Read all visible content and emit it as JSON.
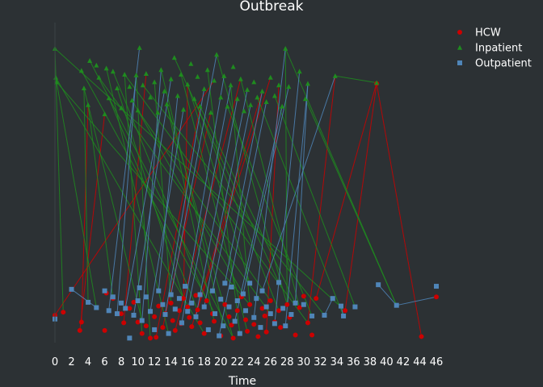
{
  "chart_data": {
    "type": "scatter",
    "title": "Outbreak",
    "xlabel": "Time",
    "ylabel": "",
    "xlim": [
      0,
      46
    ],
    "x_ticks": [
      0,
      2,
      4,
      6,
      8,
      10,
      12,
      14,
      16,
      18,
      20,
      22,
      24,
      26,
      28,
      30,
      32,
      34,
      36,
      38,
      40,
      42,
      44,
      46
    ],
    "y_axis_visible": false,
    "grid": false,
    "legend_position": "top-right",
    "background": "#2c3134",
    "series": [
      {
        "name": "HCW",
        "marker": "circle",
        "color": "#cc0000",
        "points": [
          [
            0,
            0.36
          ],
          [
            1,
            0.4
          ],
          [
            3,
            0.16
          ],
          [
            3.2,
            0.27
          ],
          [
            6,
            0.16
          ],
          [
            6.2,
            0.65
          ],
          [
            7,
            0.58
          ],
          [
            8,
            0.38
          ],
          [
            8.3,
            0.26
          ],
          [
            9,
            0.45
          ],
          [
            9.5,
            0.53
          ],
          [
            10,
            0.27
          ],
          [
            10.5,
            0.12
          ],
          [
            11,
            0.22
          ],
          [
            11.5,
            0.06
          ],
          [
            12,
            0.34
          ],
          [
            12.2,
            0.07
          ],
          [
            12.5,
            0.48
          ],
          [
            13,
            0.2
          ],
          [
            13.3,
            0.38
          ],
          [
            14,
            0.52
          ],
          [
            14.2,
            0.29
          ],
          [
            14.5,
            0.16
          ],
          [
            15,
            0.42
          ],
          [
            15.2,
            0.25
          ],
          [
            15.5,
            0.58
          ],
          [
            16,
            0.47
          ],
          [
            16.2,
            0.33
          ],
          [
            16.5,
            0.21
          ],
          [
            17,
            0.62
          ],
          [
            17.2,
            0.43
          ],
          [
            17.5,
            0.26
          ],
          [
            18,
            0.12
          ],
          [
            18.3,
            0.55
          ],
          [
            19,
            0.38
          ],
          [
            19.2,
            0.28
          ],
          [
            20,
            0.09
          ],
          [
            20.5,
            0.5
          ],
          [
            21,
            0.34
          ],
          [
            21.3,
            0.23
          ],
          [
            21.5,
            0.06
          ],
          [
            22,
            0.42
          ],
          [
            22.5,
            0.6
          ],
          [
            23,
            0.3
          ],
          [
            23.2,
            0.15
          ],
          [
            23.5,
            0.5
          ],
          [
            24,
            0.24
          ],
          [
            24.5,
            0.08
          ],
          [
            25,
            0.45
          ],
          [
            25.3,
            0.35
          ],
          [
            25.5,
            0.14
          ],
          [
            26,
            0.55
          ],
          [
            26.5,
            0.27
          ],
          [
            27,
            0.42
          ],
          [
            27.2,
            0.2
          ],
          [
            28,
            0.5
          ],
          [
            28.3,
            0.33
          ],
          [
            29,
            0.1
          ],
          [
            29.5,
            0.46
          ],
          [
            30,
            0.61
          ],
          [
            30.5,
            0.26
          ],
          [
            31,
            0.1
          ],
          [
            31.5,
            0.58
          ],
          [
            35,
            0.42
          ],
          [
            38.8,
            3.4
          ],
          [
            44.2,
            0.08
          ],
          [
            46,
            0.6
          ]
        ]
      },
      {
        "name": "Inpatient",
        "marker": "triangle",
        "color": "#1f8c1f",
        "points": [
          [
            0,
            3.86
          ],
          [
            0.1,
            3.48
          ],
          [
            0.2,
            3.42
          ],
          [
            3.2,
            3.57
          ],
          [
            3.5,
            3.34
          ],
          [
            4,
            3.12
          ],
          [
            4.2,
            3.7
          ],
          [
            5,
            3.64
          ],
          [
            5.3,
            3.48
          ],
          [
            6,
            3.0
          ],
          [
            6.2,
            3.6
          ],
          [
            6.5,
            3.21
          ],
          [
            7,
            3.56
          ],
          [
            7.5,
            3.34
          ],
          [
            8,
            3.08
          ],
          [
            8.4,
            3.52
          ],
          [
            9,
            3.36
          ],
          [
            9.3,
            3.18
          ],
          [
            9.8,
            3.51
          ],
          [
            10,
            3.05
          ],
          [
            10.2,
            3.87
          ],
          [
            10.6,
            3.38
          ],
          [
            11,
            3.53
          ],
          [
            11.5,
            3.22
          ],
          [
            12,
            3.42
          ],
          [
            12.4,
            3.02
          ],
          [
            12.8,
            3.58
          ],
          [
            13.2,
            3.3
          ],
          [
            13.5,
            3.13
          ],
          [
            14,
            3.46
          ],
          [
            14.4,
            3.74
          ],
          [
            14.8,
            3.24
          ],
          [
            15.2,
            3.52
          ],
          [
            15.5,
            3.06
          ],
          [
            16,
            3.39
          ],
          [
            16.4,
            3.66
          ],
          [
            16.8,
            3.2
          ],
          [
            17.2,
            3.49
          ],
          [
            17.5,
            3.1
          ],
          [
            18,
            3.33
          ],
          [
            18.4,
            3.58
          ],
          [
            18.8,
            3.02
          ],
          [
            19.2,
            3.44
          ],
          [
            19.5,
            3.78
          ],
          [
            20,
            3.22
          ],
          [
            20.4,
            3.5
          ],
          [
            20.8,
            3.1
          ],
          [
            21.2,
            3.38
          ],
          [
            21.5,
            3.62
          ],
          [
            22,
            3.2
          ],
          [
            22.4,
            3.46
          ],
          [
            22.8,
            3.04
          ],
          [
            23.2,
            3.32
          ],
          [
            23.6,
            3.12
          ],
          [
            24,
            3.42
          ],
          [
            24.4,
            3.22
          ],
          [
            25,
            3.3
          ],
          [
            25.5,
            3.16
          ],
          [
            26,
            3.48
          ],
          [
            26.5,
            3.24
          ],
          [
            27,
            3.38
          ],
          [
            27.4,
            3.1
          ],
          [
            27.8,
            3.86
          ],
          [
            28.2,
            3.36
          ],
          [
            29.5,
            3.56
          ],
          [
            30.2,
            3.2
          ],
          [
            30.5,
            3.4
          ],
          [
            33.8,
            3.5
          ],
          [
            38.8,
            3.41
          ]
        ]
      },
      {
        "name": "Outpatient",
        "marker": "square",
        "color": "#4f85b8",
        "points": [
          [
            0,
            0.31
          ],
          [
            2,
            0.7
          ],
          [
            4,
            0.53
          ],
          [
            5,
            0.46
          ],
          [
            6,
            0.68
          ],
          [
            6.5,
            0.42
          ],
          [
            7,
            0.6
          ],
          [
            7.5,
            0.38
          ],
          [
            8,
            0.52
          ],
          [
            8.5,
            0.45
          ],
          [
            9,
            0.06
          ],
          [
            9.5,
            0.36
          ],
          [
            10,
            0.55
          ],
          [
            10.2,
            0.72
          ],
          [
            10.5,
            0.29
          ],
          [
            11,
            0.6
          ],
          [
            11.5,
            0.41
          ],
          [
            12,
            0.17
          ],
          [
            12.5,
            0.68
          ],
          [
            13,
            0.5
          ],
          [
            13.3,
            0.37
          ],
          [
            13.7,
            0.12
          ],
          [
            14,
            0.63
          ],
          [
            14.5,
            0.44
          ],
          [
            15,
            0.58
          ],
          [
            15.3,
            0.26
          ],
          [
            15.7,
            0.74
          ],
          [
            16,
            0.41
          ],
          [
            16.5,
            0.52
          ],
          [
            17,
            0.34
          ],
          [
            17.5,
            0.63
          ],
          [
            18,
            0.47
          ],
          [
            18.5,
            0.17
          ],
          [
            19,
            0.68
          ],
          [
            19.3,
            0.38
          ],
          [
            19.8,
            0.09
          ],
          [
            20,
            0.57
          ],
          [
            20.3,
            0.22
          ],
          [
            20.5,
            0.78
          ],
          [
            21,
            0.47
          ],
          [
            21.3,
            0.73
          ],
          [
            21.7,
            0.28
          ],
          [
            22,
            0.55
          ],
          [
            22.3,
            0.12
          ],
          [
            22.7,
            0.64
          ],
          [
            23,
            0.42
          ],
          [
            23.5,
            0.78
          ],
          [
            24,
            0.33
          ],
          [
            24.3,
            0.58
          ],
          [
            24.8,
            0.2
          ],
          [
            25,
            0.68
          ],
          [
            25.5,
            0.47
          ],
          [
            26,
            0.38
          ],
          [
            26.5,
            0.25
          ],
          [
            27,
            0.79
          ],
          [
            27.5,
            0.45
          ],
          [
            27.8,
            0.22
          ],
          [
            28.5,
            0.37
          ],
          [
            29,
            0.52
          ],
          [
            30,
            0.5
          ],
          [
            31,
            0.35
          ],
          [
            32.5,
            0.36
          ],
          [
            33.5,
            0.58
          ],
          [
            34.5,
            0.48
          ],
          [
            34.8,
            0.35
          ],
          [
            36.2,
            0.47
          ],
          [
            39,
            0.76
          ],
          [
            41.2,
            0.49
          ],
          [
            46,
            0.74
          ]
        ]
      }
    ],
    "links": [
      [
        0,
        0,
        1,
        42
      ],
      [
        0,
        1,
        1,
        0
      ],
      [
        0,
        2,
        1,
        9
      ],
      [
        0,
        3,
        1,
        5
      ],
      [
        0,
        6,
        1,
        5
      ],
      [
        0,
        8,
        1,
        22
      ],
      [
        0,
        12,
        1,
        15
      ],
      [
        0,
        14,
        1,
        18
      ],
      [
        0,
        16,
        1,
        38
      ],
      [
        0,
        18,
        1,
        41
      ],
      [
        0,
        22,
        1,
        50
      ],
      [
        0,
        25,
        1,
        34
      ],
      [
        0,
        28,
        1,
        56
      ],
      [
        0,
        30,
        1,
        58
      ],
      [
        0,
        33,
        1,
        12
      ],
      [
        0,
        40,
        1,
        28
      ],
      [
        0,
        45,
        1,
        47
      ],
      [
        0,
        50,
        1,
        60
      ],
      [
        0,
        55,
        1,
        62
      ],
      [
        0,
        60,
        1,
        67
      ],
      [
        0,
        62,
        1,
        68
      ],
      [
        0,
        64,
        0,
        63
      ],
      [
        0,
        65,
        0,
        64
      ],
      [
        1,
        0,
        0,
        63
      ],
      [
        1,
        1,
        0,
        32
      ],
      [
        1,
        2,
        0,
        45
      ],
      [
        1,
        3,
        2,
        34
      ],
      [
        1,
        4,
        2,
        14
      ],
      [
        1,
        6,
        0,
        40
      ],
      [
        1,
        8,
        2,
        52
      ],
      [
        1,
        10,
        2,
        21
      ],
      [
        1,
        11,
        0,
        30
      ],
      [
        1,
        13,
        2,
        27
      ],
      [
        1,
        15,
        0,
        60
      ],
      [
        1,
        17,
        2,
        44
      ],
      [
        1,
        19,
        0,
        51
      ],
      [
        1,
        21,
        2,
        61
      ],
      [
        1,
        24,
        0,
        20
      ],
      [
        1,
        26,
        2,
        37
      ],
      [
        1,
        28,
        0,
        35
      ],
      [
        1,
        30,
        2,
        54
      ],
      [
        1,
        32,
        0,
        44
      ],
      [
        1,
        34,
        2,
        46
      ],
      [
        1,
        36,
        0,
        53
      ],
      [
        1,
        38,
        2,
        58
      ],
      [
        1,
        40,
        2,
        43
      ],
      [
        1,
        43,
        0,
        55
      ],
      [
        1,
        46,
        2,
        60
      ],
      [
        1,
        50,
        0,
        58
      ],
      [
        1,
        55,
        2,
        64
      ],
      [
        1,
        59,
        2,
        65
      ],
      [
        1,
        62,
        2,
        67
      ],
      [
        1,
        65,
        2,
        67
      ],
      [
        1,
        67,
        1,
        68
      ],
      [
        2,
        0,
        0,
        0
      ],
      [
        2,
        1,
        2,
        3
      ],
      [
        2,
        2,
        1,
        4
      ],
      [
        2,
        3,
        1,
        1
      ],
      [
        2,
        5,
        1,
        20
      ],
      [
        2,
        7,
        1,
        18
      ],
      [
        2,
        9,
        1,
        27
      ],
      [
        2,
        11,
        1,
        29
      ],
      [
        2,
        14,
        1,
        26
      ],
      [
        2,
        16,
        1,
        33
      ],
      [
        2,
        18,
        1,
        31
      ],
      [
        2,
        20,
        1,
        39
      ],
      [
        2,
        22,
        1,
        43
      ],
      [
        2,
        25,
        1,
        45
      ],
      [
        2,
        27,
        1,
        47
      ],
      [
        2,
        29,
        1,
        49
      ],
      [
        2,
        31,
        1,
        52
      ],
      [
        2,
        33,
        1,
        53
      ],
      [
        2,
        35,
        1,
        57
      ],
      [
        2,
        38,
        1,
        56
      ],
      [
        2,
        41,
        1,
        61
      ],
      [
        2,
        44,
        1,
        63
      ],
      [
        2,
        47,
        1,
        62
      ],
      [
        2,
        50,
        1,
        67
      ],
      [
        2,
        53,
        1,
        64
      ],
      [
        2,
        56,
        1,
        66
      ],
      [
        2,
        58,
        1,
        66
      ],
      [
        2,
        61,
        2,
        62
      ],
      [
        2,
        63,
        2,
        64
      ],
      [
        2,
        66,
        2,
        67
      ],
      [
        2,
        67,
        0,
        66
      ]
    ],
    "links_note": "Each link is [series_index, point_index, series_index, point_index]"
  }
}
